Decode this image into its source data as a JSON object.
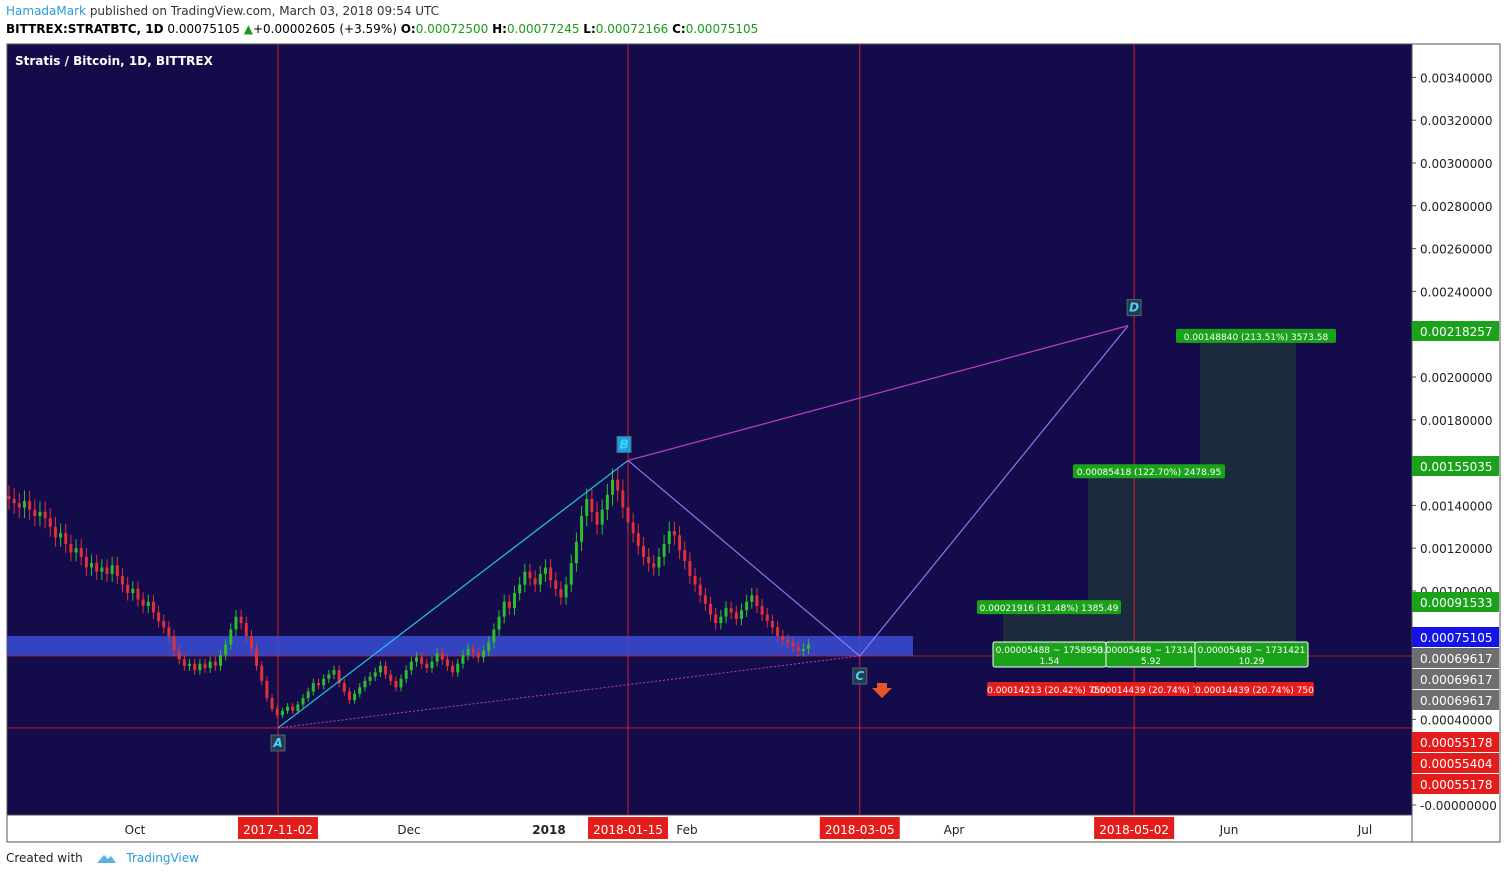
{
  "header": {
    "username": "HamadaMark",
    "published_text": "published on TradingView.com, March 03, 2018 09:54 UTC",
    "symbol": "BITTREX:STRATBTC, 1D",
    "last": "0.00075105",
    "change_arrow": "▲",
    "change": "+0.00002605 (+3.59%)",
    "o_label": "O:",
    "o_val": "0.00072500",
    "h_label": "H:",
    "h_val": "0.00077245",
    "l_label": "L:",
    "l_val": "0.00072166",
    "c_label": "C:",
    "c_val": "0.00075105"
  },
  "footer": {
    "created_with": "Created with",
    "brand": "TradingView",
    "icon": "tradingview-cloud-icon"
  },
  "chart_data": {
    "type": "candlestick",
    "title": "Stratis / Bitcoin, 1D, BITTREX",
    "colors": {
      "background": "#140c4a",
      "up_candle": "#2bbf2b",
      "down_candle": "#e0303a",
      "vertical_lines": "#d0202a",
      "support_zone": "#3a4ed4",
      "pattern_ab": "#22c6e8",
      "pattern_bc": "#8a7af0",
      "pattern_bd": "#c03cc8",
      "label_green": "#1aa31a",
      "label_red": "#e31c1c",
      "price_blue": "#1414e6",
      "price_gray": "#6e6e6e"
    },
    "x_tick_labels": [
      "Oct",
      "Dec",
      "2018",
      "Feb",
      "Apr",
      "Jun",
      "Jul"
    ],
    "x_date_markers": [
      "2017-11-02",
      "2018-01-15",
      "2018-03-05",
      "2018-05-02"
    ],
    "y_axis_labels": [
      "0.00340000",
      "0.00320000",
      "0.00300000",
      "0.00280000",
      "0.00260000",
      "0.00240000",
      "0.00200000",
      "0.00180000",
      "0.00140000",
      "0.00120000",
      "0.00100000",
      "0.00080000",
      "0.00040000",
      "-0.00000000"
    ],
    "y_range": [
      0,
      0.0035
    ],
    "price_tags": [
      {
        "value": "0.00218257",
        "kind": "green"
      },
      {
        "value": "0.00155035",
        "kind": "green"
      },
      {
        "value": "0.00091533",
        "kind": "green"
      },
      {
        "value": "0.00075105",
        "kind": "blue"
      },
      {
        "value": "0.00069617",
        "kind": "gray"
      },
      {
        "value": "0.00069617",
        "kind": "gray"
      },
      {
        "value": "0.00069617",
        "kind": "gray"
      },
      {
        "value": "0.00055178",
        "kind": "red"
      },
      {
        "value": "0.00055404",
        "kind": "red"
      },
      {
        "value": "0.00055178",
        "kind": "red"
      }
    ],
    "pattern_points": [
      {
        "label": "A",
        "date": "2017-11-02",
        "price": 0.00036
      },
      {
        "label": "B",
        "date": "2018-01-15",
        "price": 0.00161
      },
      {
        "label": "C",
        "date": "2018-03-05",
        "price": 0.00069617
      },
      {
        "label": "D",
        "date": "2018-05-02",
        "price": 0.00224
      }
    ],
    "support_zone": [
      0.00069617,
      0.00079
    ],
    "stop_level": 0.00036,
    "target_labels": [
      {
        "text": "0.00148840 (213.51%) 3573.58",
        "price": 0.00218257
      },
      {
        "text": "0.00085418 (122.70%) 2478.95",
        "price": 0.00155035
      },
      {
        "text": "0.00021916 (31.48%) 1385.49",
        "price": 0.00091533
      }
    ],
    "entry_labels": [
      {
        "line1": "0.00005488 ~ 1758953",
        "line2": "1.54"
      },
      {
        "line1": "0.00005488 ~ 1731421",
        "line2": "5.92"
      },
      {
        "line1": "0.00005488 ~ 1731421",
        "line2": "10.29"
      }
    ],
    "stop_labels": [
      "0.00014213 (20.42%) 750",
      "0.00014439 (20.74%) 750",
      "0.00014439 (20.74%) 750"
    ],
    "ohlc_daily_close": [
      0.00143,
      0.00141,
      0.00139,
      0.00142,
      0.00138,
      0.00135,
      0.00137,
      0.00134,
      0.0013,
      0.00125,
      0.00127,
      0.00122,
      0.00118,
      0.0012,
      0.00116,
      0.00111,
      0.00113,
      0.00109,
      0.00111,
      0.00108,
      0.00112,
      0.00107,
      0.00103,
      0.00099,
      0.00101,
      0.00096,
      0.00093,
      0.00095,
      0.0009,
      0.00086,
      0.00083,
      0.00079,
      0.00072,
      0.00068,
      0.00065,
      0.00066,
      0.00063,
      0.00066,
      0.00064,
      0.00067,
      0.00065,
      0.0007,
      0.00075,
      0.00082,
      0.00088,
      0.00085,
      0.00079,
      0.00073,
      0.00065,
      0.00058,
      0.0005,
      0.00045,
      0.00042,
      0.00044,
      0.00046,
      0.00044,
      0.00047,
      0.0005,
      0.00053,
      0.00057,
      0.00056,
      0.00059,
      0.00061,
      0.00063,
      0.00057,
      0.00053,
      0.00049,
      0.00052,
      0.00055,
      0.00058,
      0.0006,
      0.00062,
      0.00065,
      0.00061,
      0.00058,
      0.00055,
      0.00059,
      0.00063,
      0.00067,
      0.00069,
      0.00066,
      0.00064,
      0.00067,
      0.00071,
      0.00068,
      0.00065,
      0.00062,
      0.00066,
      0.0007,
      0.00073,
      0.00071,
      0.00069,
      0.00072,
      0.00076,
      0.00082,
      0.00088,
      0.00095,
      0.00092,
      0.00099,
      0.00103,
      0.00109,
      0.00106,
      0.00103,
      0.00108,
      0.00111,
      0.00105,
      0.00101,
      0.00097,
      0.00103,
      0.00113,
      0.00123,
      0.00135,
      0.00143,
      0.00137,
      0.00131,
      0.00138,
      0.00145,
      0.00152,
      0.00147,
      0.00139,
      0.00132,
      0.00127,
      0.00121,
      0.00116,
      0.00113,
      0.00111,
      0.00116,
      0.00122,
      0.00128,
      0.00126,
      0.00119,
      0.00114,
      0.00107,
      0.00103,
      0.00098,
      0.00094,
      0.00089,
      0.00085,
      0.00088,
      0.00092,
      0.0009,
      0.00087,
      0.00091,
      0.00095,
      0.00098,
      0.00093,
      0.00089,
      0.00086,
      0.00083,
      0.00079,
      0.00077,
      0.00076,
      0.00074,
      0.00072,
      0.00073,
      0.00075
    ]
  }
}
